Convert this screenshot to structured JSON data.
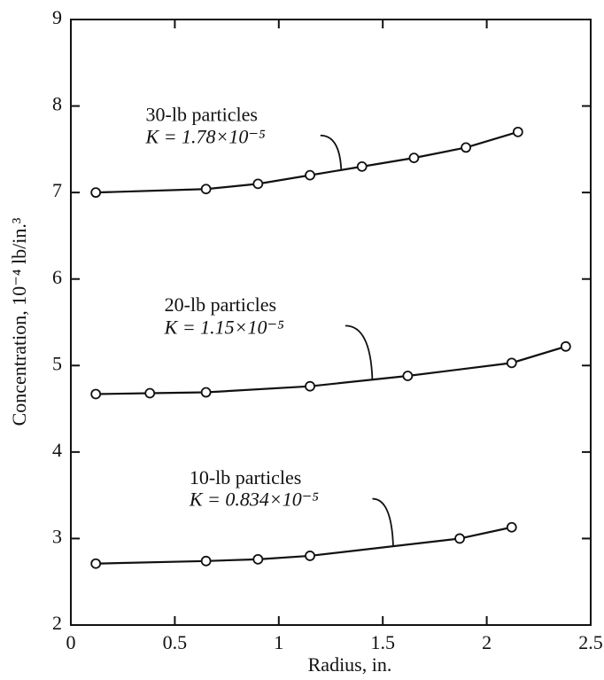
{
  "chart_data": {
    "type": "line",
    "x_label": "Radius, in.",
    "y_label": "Concentration, 10⁻⁴ lb/in.³",
    "xlim": [
      0,
      2.5
    ],
    "ylim": [
      2,
      9
    ],
    "xticks": [
      0,
      0.5,
      1,
      1.5,
      2,
      2.5
    ],
    "yticks": [
      2,
      3,
      4,
      5,
      6,
      7,
      8,
      9
    ],
    "color": "#111111",
    "series": [
      {
        "name": "30-lb particles",
        "annotation": "K = 1.78×10⁻⁵",
        "x": [
          0.12,
          0.65,
          0.9,
          1.15,
          1.4,
          1.65,
          1.9,
          2.15
        ],
        "values": [
          7.0,
          7.04,
          7.1,
          7.2,
          7.3,
          7.4,
          7.52,
          7.7
        ]
      },
      {
        "name": "20-lb particles",
        "annotation": "K = 1.15×10⁻⁵",
        "x": [
          0.12,
          0.38,
          0.65,
          1.15,
          1.62,
          2.12,
          2.38
        ],
        "values": [
          4.67,
          4.68,
          4.69,
          4.76,
          4.88,
          5.03,
          5.22
        ]
      },
      {
        "name": "10-lb particles",
        "annotation": "K = 0.834×10⁻⁵",
        "x": [
          0.12,
          0.65,
          0.9,
          1.15,
          1.87,
          2.12
        ],
        "values": [
          2.71,
          2.74,
          2.76,
          2.8,
          3.0,
          3.13
        ]
      }
    ]
  }
}
